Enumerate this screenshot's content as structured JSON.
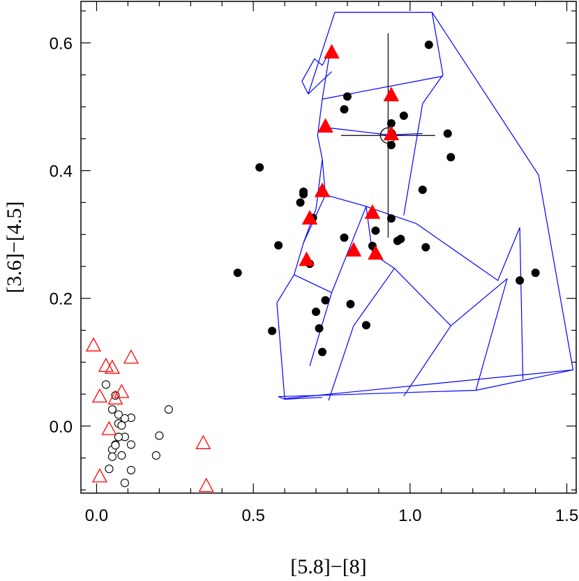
{
  "chart_data": {
    "type": "scatter",
    "xlabel": "[5.8]−[8]",
    "ylabel": "[3.6]−[4.5]",
    "xlim": [
      -0.05,
      1.53
    ],
    "ylim": [
      -0.105,
      0.665
    ],
    "xticks": [
      0.0,
      0.5,
      1.0,
      1.5
    ],
    "xtick_labels": [
      "0.0",
      "0.5",
      "1.0",
      "1.5"
    ],
    "yticks": [
      0.0,
      0.2,
      0.4,
      0.6
    ],
    "ytick_labels": [
      "0.0",
      "0.2",
      "0.4",
      "0.6"
    ],
    "colors": {
      "grid_lines": "#0000ff",
      "red_triangles": "#ff0000",
      "black_points": "#000000"
    },
    "grid_lines": [
      [
        [
          0.76,
          0.648
        ],
        [
          1.07,
          0.648
        ],
        [
          1.41,
          0.393
        ],
        [
          1.52,
          0.088
        ],
        [
          1.21,
          0.056
        ],
        [
          0.58,
          0.046
        ],
        [
          0.6,
          0.042
        ],
        [
          0.72,
          0.045
        ]
      ],
      [
        [
          0.6,
          0.043
        ],
        [
          1.52,
          0.088
        ]
      ],
      [
        [
          0.76,
          0.648
        ],
        [
          0.675,
          0.52
        ]
      ],
      [
        [
          0.675,
          0.52
        ],
        [
          0.75,
          0.555
        ]
      ],
      [
        [
          0.675,
          0.52
        ],
        [
          0.655,
          0.54
        ],
        [
          0.695,
          0.575
        ],
        [
          0.72,
          0.565
        ],
        [
          0.745,
          0.588
        ]
      ],
      [
        [
          1.07,
          0.648
        ],
        [
          1.105,
          0.55
        ],
        [
          1.04,
          0.505
        ],
        [
          0.98,
          0.33
        ]
      ],
      [
        [
          0.72,
          0.512
        ],
        [
          1.105,
          0.548
        ]
      ],
      [
        [
          0.745,
          0.588
        ],
        [
          0.72,
          0.512
        ],
        [
          0.705,
          0.455
        ],
        [
          0.72,
          0.418
        ],
        [
          0.7,
          0.34
        ],
        [
          0.66,
          0.287
        ],
        [
          0.63,
          0.237
        ],
        [
          0.575,
          0.193
        ]
      ],
      [
        [
          0.72,
          0.468
        ],
        [
          0.81,
          0.463
        ],
        [
          0.93,
          0.456
        ],
        [
          1.04,
          0.458
        ]
      ],
      [
        [
          0.72,
          0.418
        ],
        [
          0.73,
          0.362
        ],
        [
          0.86,
          0.344
        ],
        [
          1.02,
          0.317
        ]
      ],
      [
        [
          0.66,
          0.287
        ],
        [
          0.73,
          0.362
        ]
      ],
      [
        [
          0.63,
          0.237
        ],
        [
          0.75,
          0.209
        ],
        [
          0.86,
          0.344
        ]
      ],
      [
        [
          1.02,
          0.317
        ],
        [
          1.28,
          0.228
        ],
        [
          1.35,
          0.311
        ]
      ],
      [
        [
          0.75,
          0.209
        ],
        [
          0.68,
          0.094
        ]
      ],
      [
        [
          0.86,
          0.344
        ],
        [
          0.88,
          0.27
        ],
        [
          0.95,
          0.247
        ],
        [
          1.13,
          0.157
        ],
        [
          1.31,
          0.231
        ]
      ],
      [
        [
          0.95,
          0.247
        ],
        [
          0.82,
          0.157
        ],
        [
          0.74,
          0.04
        ]
      ],
      [
        [
          1.13,
          0.157
        ],
        [
          0.98,
          0.047
        ]
      ],
      [
        [
          1.31,
          0.231
        ],
        [
          1.21,
          0.056
        ]
      ],
      [
        [
          1.35,
          0.311
        ],
        [
          1.36,
          0.073
        ]
      ],
      [
        [
          0.575,
          0.193
        ],
        [
          0.6,
          0.043
        ]
      ]
    ],
    "series": [
      {
        "name": "filled circles",
        "marker": "circle",
        "filled": true,
        "color": "#000000",
        "x": [
          1.06,
          0.8,
          0.79,
          0.98,
          0.94,
          0.94,
          1.12,
          1.13,
          0.52,
          0.66,
          0.66,
          0.65,
          0.69,
          0.58,
          0.68,
          0.94,
          0.79,
          0.88,
          0.89,
          0.97,
          0.96,
          1.04,
          1.05,
          0.45,
          0.73,
          0.81,
          0.7,
          0.71,
          0.86,
          0.56,
          0.72,
          1.35,
          1.4
        ],
        "y": [
          0.597,
          0.516,
          0.496,
          0.486,
          0.474,
          0.44,
          0.458,
          0.421,
          0.405,
          0.367,
          0.363,
          0.35,
          0.326,
          0.283,
          0.254,
          0.325,
          0.295,
          0.282,
          0.306,
          0.293,
          0.29,
          0.37,
          0.28,
          0.24,
          0.197,
          0.191,
          0.179,
          0.153,
          0.158,
          0.149,
          0.116,
          0.228,
          0.24
        ]
      },
      {
        "name": "filled triangles",
        "marker": "triangle",
        "filled": true,
        "color": "#ff0000",
        "x": [
          0.75,
          0.94,
          0.73,
          0.94,
          0.72,
          0.68,
          0.88,
          0.82,
          0.89,
          0.67
        ],
        "y": [
          0.585,
          0.518,
          0.469,
          0.457,
          0.368,
          0.325,
          0.334,
          0.275,
          0.27,
          0.26
        ]
      },
      {
        "name": "open triangles",
        "marker": "triangle",
        "filled": false,
        "color": "#ff0000",
        "x": [
          -0.01,
          0.11,
          0.03,
          0.05,
          0.01,
          0.06,
          0.08,
          0.04,
          0.34,
          0.01,
          0.35
        ],
        "y": [
          0.126,
          0.107,
          0.094,
          0.091,
          0.046,
          0.043,
          0.053,
          -0.005,
          -0.027,
          -0.079,
          -0.094
        ]
      },
      {
        "name": "open circles",
        "marker": "circle",
        "filled": false,
        "color": "#000000",
        "x": [
          0.03,
          0.06,
          0.05,
          0.07,
          0.11,
          0.09,
          0.07,
          0.08,
          0.09,
          0.23,
          0.07,
          0.2,
          0.06,
          0.11,
          0.05,
          0.08,
          0.05,
          0.19,
          0.06,
          0.04,
          0.11,
          0.09
        ],
        "y": [
          0.065,
          0.048,
          0.026,
          0.018,
          0.013,
          0.012,
          0.004,
          0.001,
          -0.017,
          0.026,
          -0.017,
          -0.015,
          -0.029,
          -0.029,
          -0.037,
          -0.046,
          -0.048,
          -0.046,
          -0.03,
          -0.067,
          -0.069,
          -0.089
        ]
      }
    ],
    "annotations": [
      {
        "type": "error_bar",
        "color": "#000000",
        "x": 0.93,
        "y": 0.455,
        "x_err": 0.15,
        "y_err_plus": 0.16,
        "y_err_minus": 0.16,
        "marker": "open circle"
      }
    ]
  }
}
